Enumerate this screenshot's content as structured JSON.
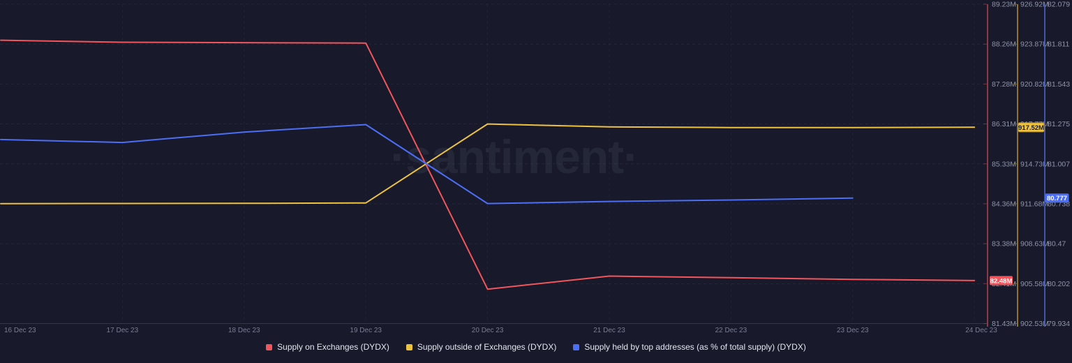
{
  "watermark": "·santiment·",
  "legend": [
    {
      "key": "supply-on-exchanges",
      "label": "Supply on Exchanges (DYDX)",
      "color": "#f2555c"
    },
    {
      "key": "supply-outside-exchanges",
      "label": "Supply outside of Exchanges (DYDX)",
      "color": "#edc240"
    },
    {
      "key": "top-addresses-percent",
      "label": "Supply held by top addresses (as % of total supply) (DYDX)",
      "color": "#4c6ef5"
    }
  ],
  "chart_data": {
    "type": "line",
    "x_categories": [
      "16 Dec 23",
      "17 Dec 23",
      "18 Dec 23",
      "19 Dec 23",
      "20 Dec 23",
      "21 Dec 23",
      "22 Dec 23",
      "23 Dec 23",
      "24 Dec 23"
    ],
    "grid": "dashed",
    "legend_position": "bottom-center",
    "series": [
      {
        "key": "supply-on-exchanges",
        "name": "Supply on Exchanges (DYDX)",
        "color": "#f2555c",
        "axis_color": "#8c3a44",
        "unit": "M DYDX",
        "values": [
          88.35,
          88.3,
          88.29,
          88.28,
          82.27,
          82.59,
          82.55,
          82.51,
          82.48
        ],
        "axis": {
          "min": 81.43,
          "max": 89.23,
          "ticks": [
            "89.23M",
            "88.26M",
            "87.28M",
            "86.31M",
            "85.33M",
            "84.36M",
            "83.38M",
            "82.41M",
            "81.43M"
          ]
        },
        "last_value_label": "82.48M",
        "badge_text_color": "#ffffff"
      },
      {
        "key": "supply-outside-exchanges",
        "name": "Supply outside of Exchanges (DYDX)",
        "color": "#edc240",
        "axis_color": "#8d7434",
        "unit": "M DYDX",
        "values": [
          911.69,
          911.7,
          911.71,
          911.74,
          917.77,
          917.55,
          917.5,
          917.5,
          917.52
        ],
        "axis": {
          "min": 902.53,
          "max": 926.92,
          "ticks": [
            "926.92M",
            "923.87M",
            "920.82M",
            "917.77M",
            "914.73M",
            "911.68M",
            "908.63M",
            "905.58M",
            "902.53M"
          ]
        },
        "last_value_label": "917.52M",
        "badge_text_color": "#1b1d2e",
        "badge_border": "#b8912a"
      },
      {
        "key": "top-addresses-percent",
        "name": "Supply held by top addresses (as % of total supply) (DYDX)",
        "color": "#4c6ef5",
        "axis_color": "#3f56aa",
        "unit": "%",
        "values": [
          81.17,
          81.15,
          81.22,
          81.27,
          80.74,
          80.754,
          80.764,
          80.777
        ],
        "axis": {
          "min": 79.934,
          "max": 82.079,
          "ticks": [
            "82.079",
            "81.811",
            "81.543",
            "81.275",
            "81.007",
            "80.738",
            "80.47",
            "80.202",
            "79.934"
          ]
        },
        "last_value_label": "80.777",
        "badge_text_color": "#ffffff"
      }
    ]
  }
}
